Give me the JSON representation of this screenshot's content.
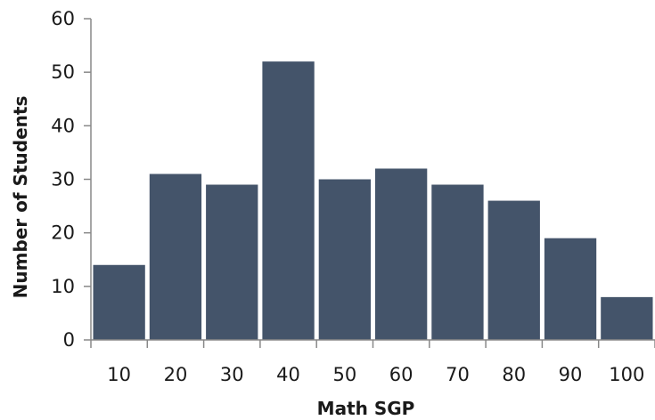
{
  "chart_data": {
    "type": "bar",
    "categories": [
      "10",
      "20",
      "30",
      "40",
      "50",
      "60",
      "70",
      "80",
      "90",
      "100"
    ],
    "values": [
      14,
      31,
      29,
      52,
      30,
      32,
      29,
      26,
      19,
      8
    ],
    "xlabel": "Math SGP",
    "ylabel": "Number of Students",
    "ylim": [
      0,
      60
    ],
    "yticks": [
      "0",
      "10",
      "20",
      "30",
      "40",
      "50",
      "60"
    ],
    "grid": false,
    "legend": "none",
    "bar_color": "#44546A"
  }
}
